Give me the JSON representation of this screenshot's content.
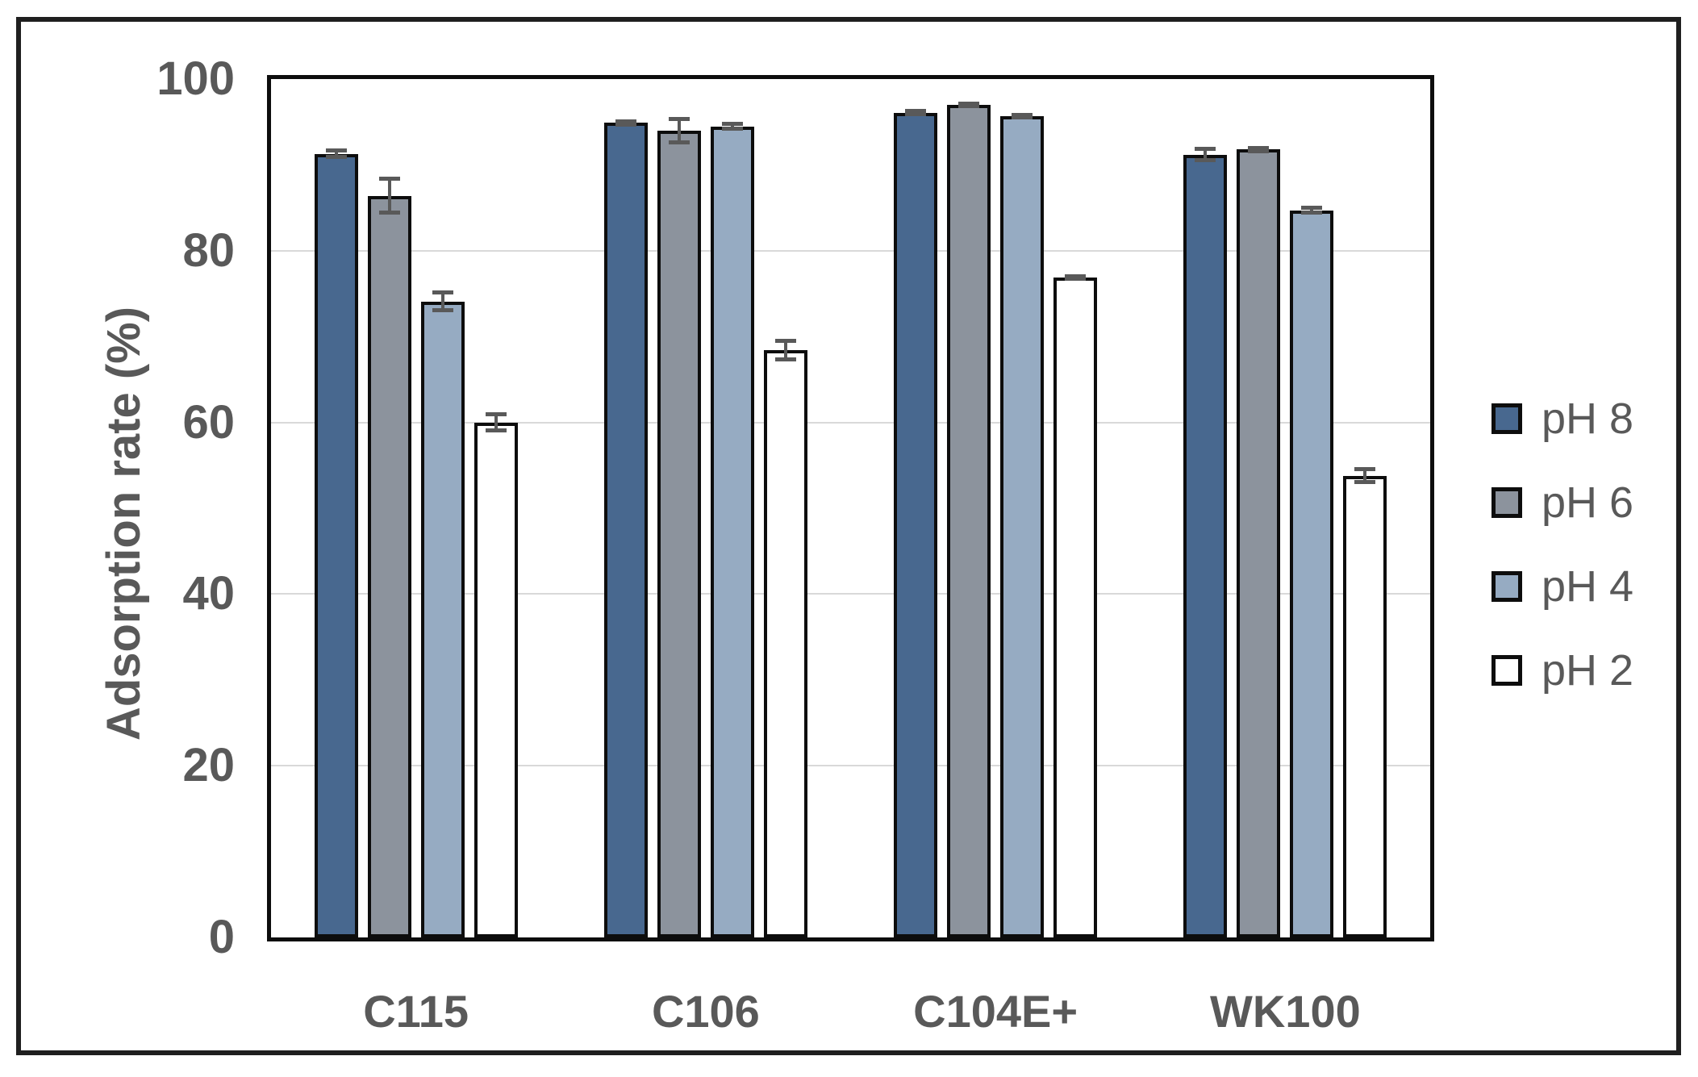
{
  "figure": {
    "background": "#ffffff",
    "frame_color": "#1f1f1f"
  },
  "chart_data": {
    "type": "bar",
    "title": "",
    "ylabel": "Adsorption rate (%)",
    "xlabel": "",
    "ylim": [
      0,
      100
    ],
    "yticks": [
      0,
      20,
      40,
      60,
      80,
      100
    ],
    "grid": true,
    "gridline_color": "#d9d9d9",
    "text_color": "#595959",
    "bar_border_color": "#0d0d0d",
    "error_bar_color": "#595959",
    "legend_position": "right",
    "categories": [
      "C115",
      "C106",
      "C104E+",
      "WK100"
    ],
    "series": [
      {
        "name": "pH 8",
        "color": "#48688F",
        "values": [
          91.3,
          94.9,
          96.1,
          91.2
        ],
        "errors": [
          0.6,
          0.4,
          0.4,
          0.9
        ]
      },
      {
        "name": "pH 6",
        "color": "#8C939D",
        "values": [
          86.4,
          94.0,
          97.0,
          91.8
        ],
        "errors": [
          2.2,
          1.6,
          0.4,
          0.4
        ]
      },
      {
        "name": "pH 4",
        "color": "#96ABC2",
        "values": [
          74.1,
          94.5,
          95.7,
          84.7
        ],
        "errors": [
          1.3,
          0.5,
          0.4,
          0.5
        ]
      },
      {
        "name": "pH 2",
        "color": "#FFFFFF",
        "values": [
          60.0,
          68.4,
          76.9,
          53.8
        ],
        "errors": [
          1.2,
          1.3,
          0.4,
          1.0
        ]
      }
    ]
  }
}
